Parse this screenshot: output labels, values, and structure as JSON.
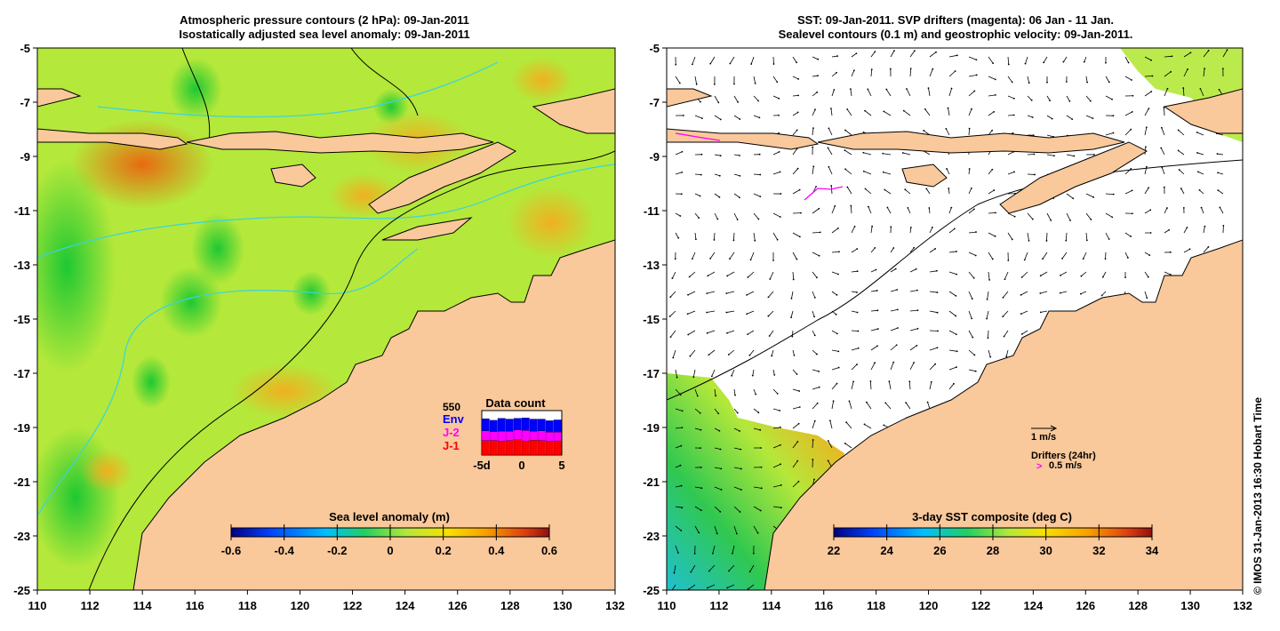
{
  "left_panel": {
    "title_line1": "Atmospheric pressure contours (2 hPa): 09-Jan-2011",
    "title_line2": "Isostatically adjusted sea level anomaly: 09-Jan-2011",
    "colorbar": {
      "label": "Sea level anomaly (m)",
      "ticks": [
        "-0.6",
        "-0.4",
        "-0.2",
        "0",
        "0.2",
        "0.4",
        "0.6"
      ],
      "range": [
        -0.6,
        0.6
      ]
    },
    "inset": {
      "title": "Data count",
      "max_label": "550",
      "legend": [
        {
          "name": "Env",
          "color": "#0000ff"
        },
        {
          "name": "J-2",
          "color": "#ff00ff"
        },
        {
          "name": "J-1",
          "color": "#ff0000"
        }
      ],
      "x_ticks": [
        "-5d",
        "0",
        "5"
      ],
      "counts": {
        "J-1": [
          180,
          180,
          170,
          180,
          190,
          175,
          185,
          180,
          170,
          175
        ],
        "J-2": [
          120,
          110,
          125,
          115,
          120,
          130,
          110,
          120,
          115,
          110
        ],
        "Env": [
          150,
          140,
          160,
          150,
          145,
          155,
          150,
          145,
          140,
          150
        ]
      }
    }
  },
  "right_panel": {
    "title_line1": "SST: 09-Jan-2011. SVP drifters (magenta): 06 Jan - 11 Jan.",
    "title_line2": "Sealevel contours (0.1 m) and geostrophic velocity: 09-Jan-2011.",
    "colorbar": {
      "label": "3-day SST composite (deg C)",
      "ticks": [
        "22",
        "24",
        "26",
        "28",
        "30",
        "32",
        "34"
      ],
      "range": [
        22,
        34
      ]
    },
    "velocity_key": "1 m/s",
    "drifters_key": "Drifters (24hr)",
    "drifters_speed": "0.5 m/s"
  },
  "axes": {
    "lon_ticks": [
      "110",
      "112",
      "114",
      "116",
      "118",
      "120",
      "122",
      "124",
      "126",
      "128",
      "130",
      "132"
    ],
    "lat_ticks": [
      "-5",
      "-7",
      "-9",
      "-11",
      "-13",
      "-15",
      "-17",
      "-19",
      "-21",
      "-23",
      "-25"
    ]
  },
  "credit": "© IMOS 31-Jan-2013 16:30 Hobart Time",
  "colors": {
    "land": "#f9c89b",
    "sea_mid": "#b4e83a",
    "coast": "#000000",
    "contour": "#38d4e0"
  }
}
